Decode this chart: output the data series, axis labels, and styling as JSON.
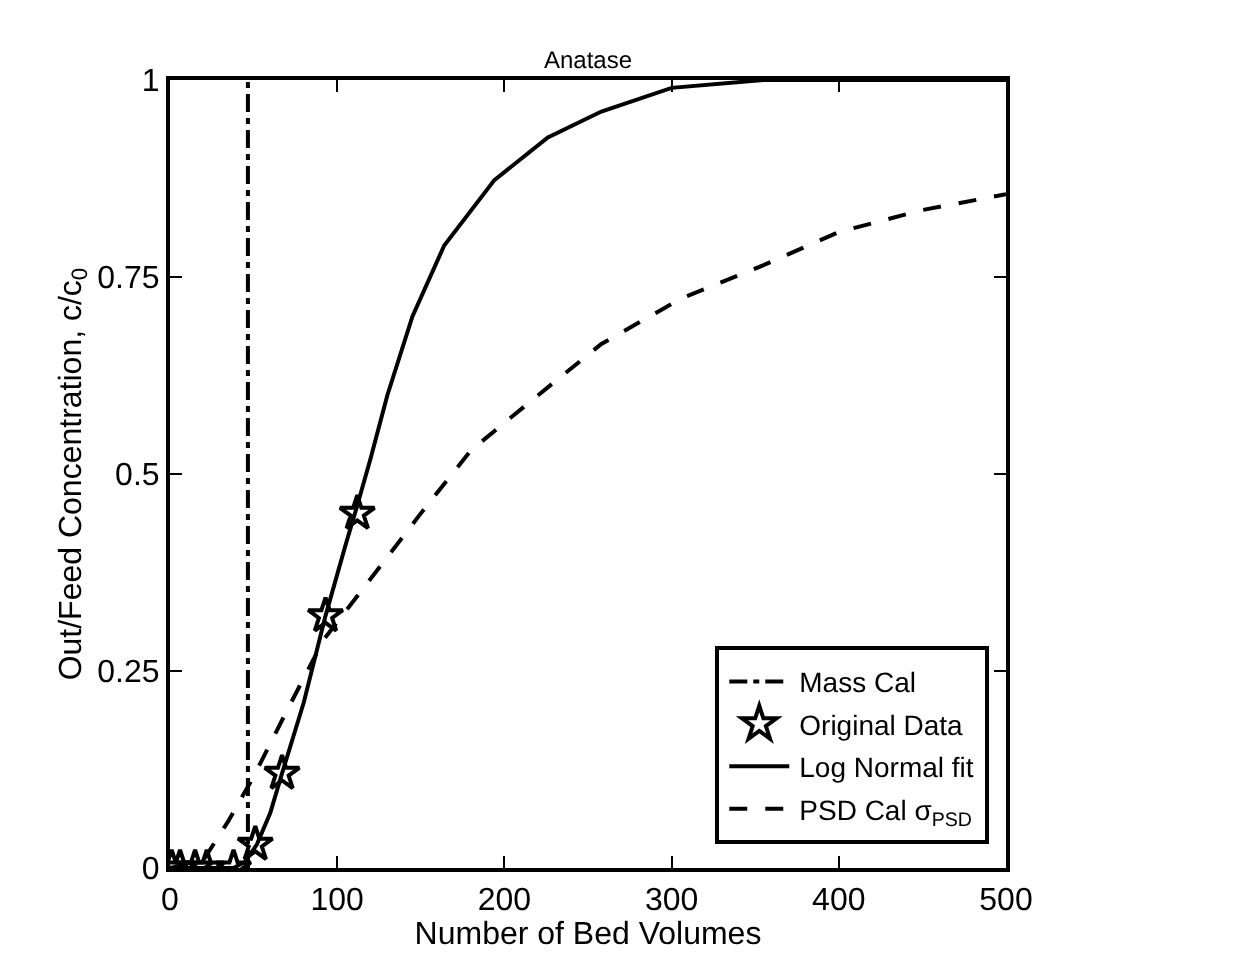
{
  "chart_data": {
    "type": "line",
    "title": "Anatase",
    "xlabel": "Number of Bed Volumes",
    "ylabel": "Out/Feed Concentration, c/c$_{0}$",
    "xlim": [
      0,
      500
    ],
    "xticks": [
      0,
      100,
      200,
      300,
      400,
      500
    ],
    "ylim": [
      0,
      1
    ],
    "yticks": [
      0,
      0.25,
      0.5,
      0.75,
      1
    ],
    "grid": false,
    "legend": "bottom right",
    "series": [
      {
        "name": "Mass Cal",
        "color": "#000000",
        "line_style": "dashdot",
        "x": [
          46.6,
          46.6
        ],
        "values": [
          0,
          1
        ]
      },
      {
        "name": "Original Data",
        "type": "scatter",
        "color": "#000000",
        "marker": "star",
        "x": [
          1,
          6,
          15,
          22,
          38,
          51,
          67,
          93,
          112
        ],
        "values": [
          0,
          0,
          0,
          0,
          0,
          0.03,
          0.12,
          0.32,
          0.45
        ]
      },
      {
        "name": "Log Normal fit",
        "color": "#000000",
        "line_style": "solid",
        "x": [
          0,
          38,
          45,
          52,
          60,
          67,
          80,
          93,
          105,
          112,
          120,
          130,
          145,
          164,
          194,
          226,
          258,
          300,
          355,
          400,
          500
        ],
        "values": [
          0,
          0,
          0.008,
          0.03,
          0.07,
          0.12,
          0.21,
          0.32,
          0.41,
          0.46,
          0.52,
          0.6,
          0.7,
          0.79,
          0.873,
          0.927,
          0.96,
          0.99,
          1,
          1,
          1
        ]
      },
      {
        "name": "PSD Cal σ$_{PSD}$",
        "color": "#000000",
        "line_style": "dashed",
        "x": [
          0,
          20,
          35,
          50,
          70,
          92,
          116,
          150,
          180,
          219,
          258,
          306,
          355,
          400,
          450,
          500
        ],
        "values": [
          0,
          0.01,
          0.06,
          0.116,
          0.2,
          0.29,
          0.356,
          0.45,
          0.53,
          0.598,
          0.665,
          0.723,
          0.765,
          0.807,
          0.835,
          0.855
        ]
      }
    ]
  }
}
